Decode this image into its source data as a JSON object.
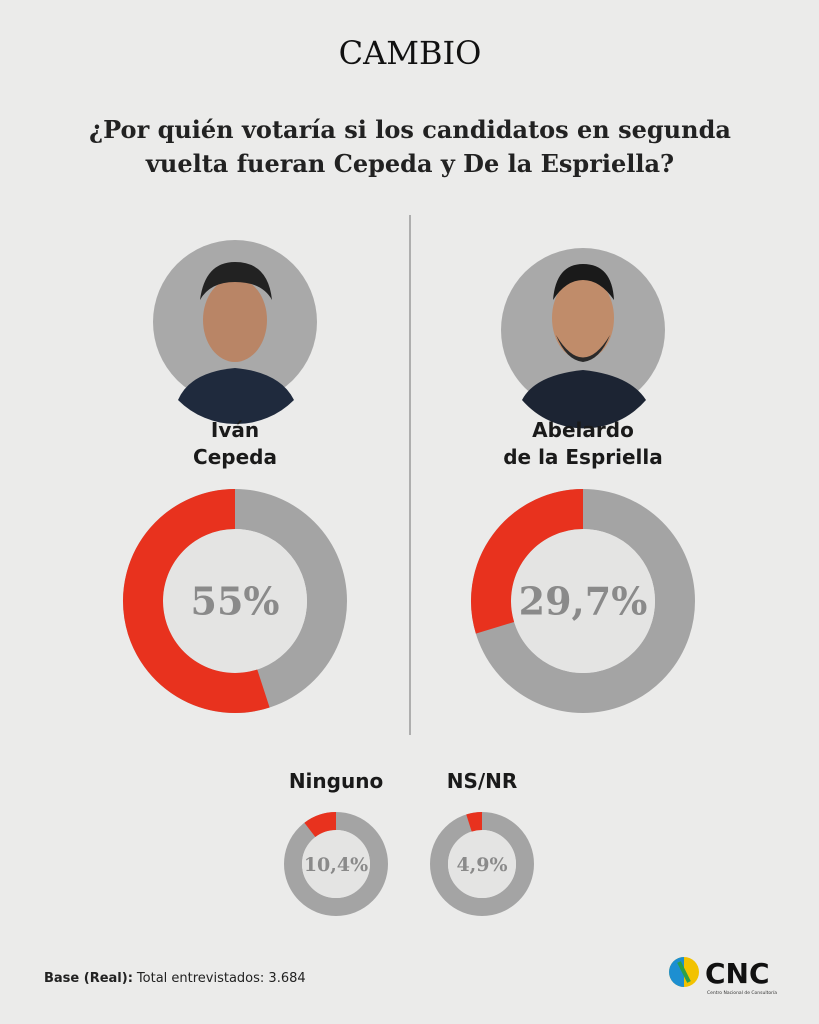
{
  "header": {
    "brand": "CAMBIO",
    "title": [
      "¿Por quién votaría si los candidatos en segunda",
      "vuelta fueran Cepeda y De la Espriella?"
    ]
  },
  "chart_data": [
    {
      "type": "donut",
      "title": [
        "Iván",
        "Cepeda"
      ],
      "values": [
        55
      ],
      "value_labels": [
        "55%"
      ],
      "ylim": [
        0,
        100
      ],
      "color": "#e8321e",
      "track_color": "#a4a4a4"
    },
    {
      "type": "donut",
      "title": [
        "Abelardo",
        "de la Espriella"
      ],
      "values": [
        29.7
      ],
      "value_labels": [
        "29,7%"
      ],
      "ylim": [
        0,
        100
      ],
      "color": "#e8321e",
      "track_color": "#a4a4a4"
    },
    {
      "type": "donut",
      "title": [
        "Ninguno"
      ],
      "values": [
        10.4
      ],
      "value_labels": [
        "10,4%"
      ],
      "ylim": [
        0,
        100
      ],
      "color": "#e8321e",
      "track_color": "#a4a4a4"
    },
    {
      "type": "donut",
      "title": [
        "NS/NR"
      ],
      "values": [
        4.9
      ],
      "value_labels": [
        "4,9%"
      ],
      "ylim": [
        0,
        100
      ],
      "color": "#e8321e",
      "track_color": "#a4a4a4"
    }
  ],
  "footer": {
    "base_label": "Base (Real):",
    "base_text": "Total entrevistados: 3.684",
    "logo": "CNC",
    "logo_sub": "Centro Nacional de Consultoría"
  }
}
